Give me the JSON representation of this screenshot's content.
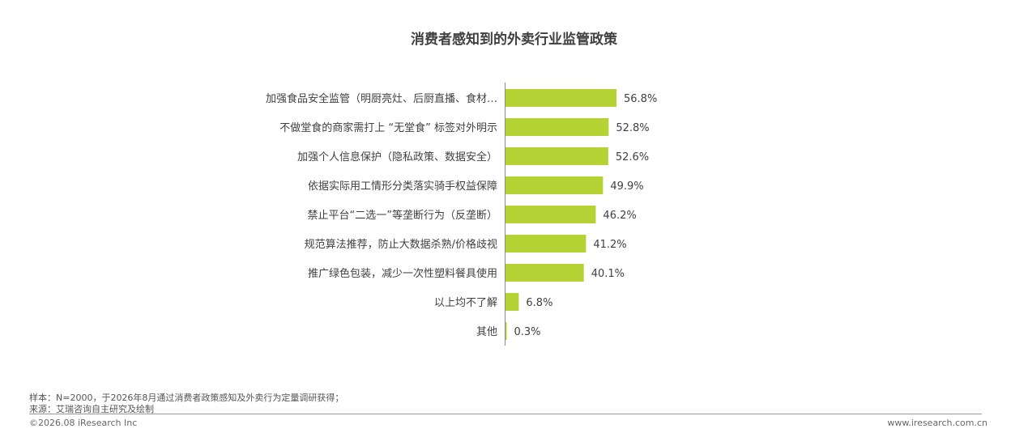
{
  "chart_data": {
    "type": "bar",
    "orientation": "horizontal",
    "title": "消费者感知到的外卖行业监管政策",
    "categories": [
      "加强食品安全监管（明厨亮灶、后厨直播、食材…",
      "不做堂食的商家需打上 “无堂食” 标签对外明示",
      "加强个人信息保护（隐私政策、数据安全）",
      "依据实际用工情形分类落实骑手权益保障",
      "禁止平台“二选一”等垄断行为（反垄断）",
      "规范算法推荐，防止大数据杀熟/价格歧视",
      "推广绿色包装，减少一次性塑料餐具使用",
      "以上均不了解",
      "其他"
    ],
    "values": [
      56.8,
      52.8,
      52.6,
      49.9,
      46.2,
      41.2,
      40.1,
      6.8,
      0.3
    ],
    "value_labels": [
      "56.8%",
      "52.8%",
      "52.6%",
      "49.9%",
      "46.2%",
      "41.2%",
      "40.1%",
      "6.8%",
      "0.3%"
    ],
    "bar_color": "#b5d334",
    "grid": false,
    "legend": "none"
  },
  "footer": {
    "sample": "样本：N=2000，于2026年8月通过消费者政策感知及外卖行为定量调研获得；",
    "source": "来源：艾瑞咨询自主研究及绘制",
    "copyright": "©2026.08 iResearch Inc",
    "website": "www.iresearch.com.cn"
  }
}
